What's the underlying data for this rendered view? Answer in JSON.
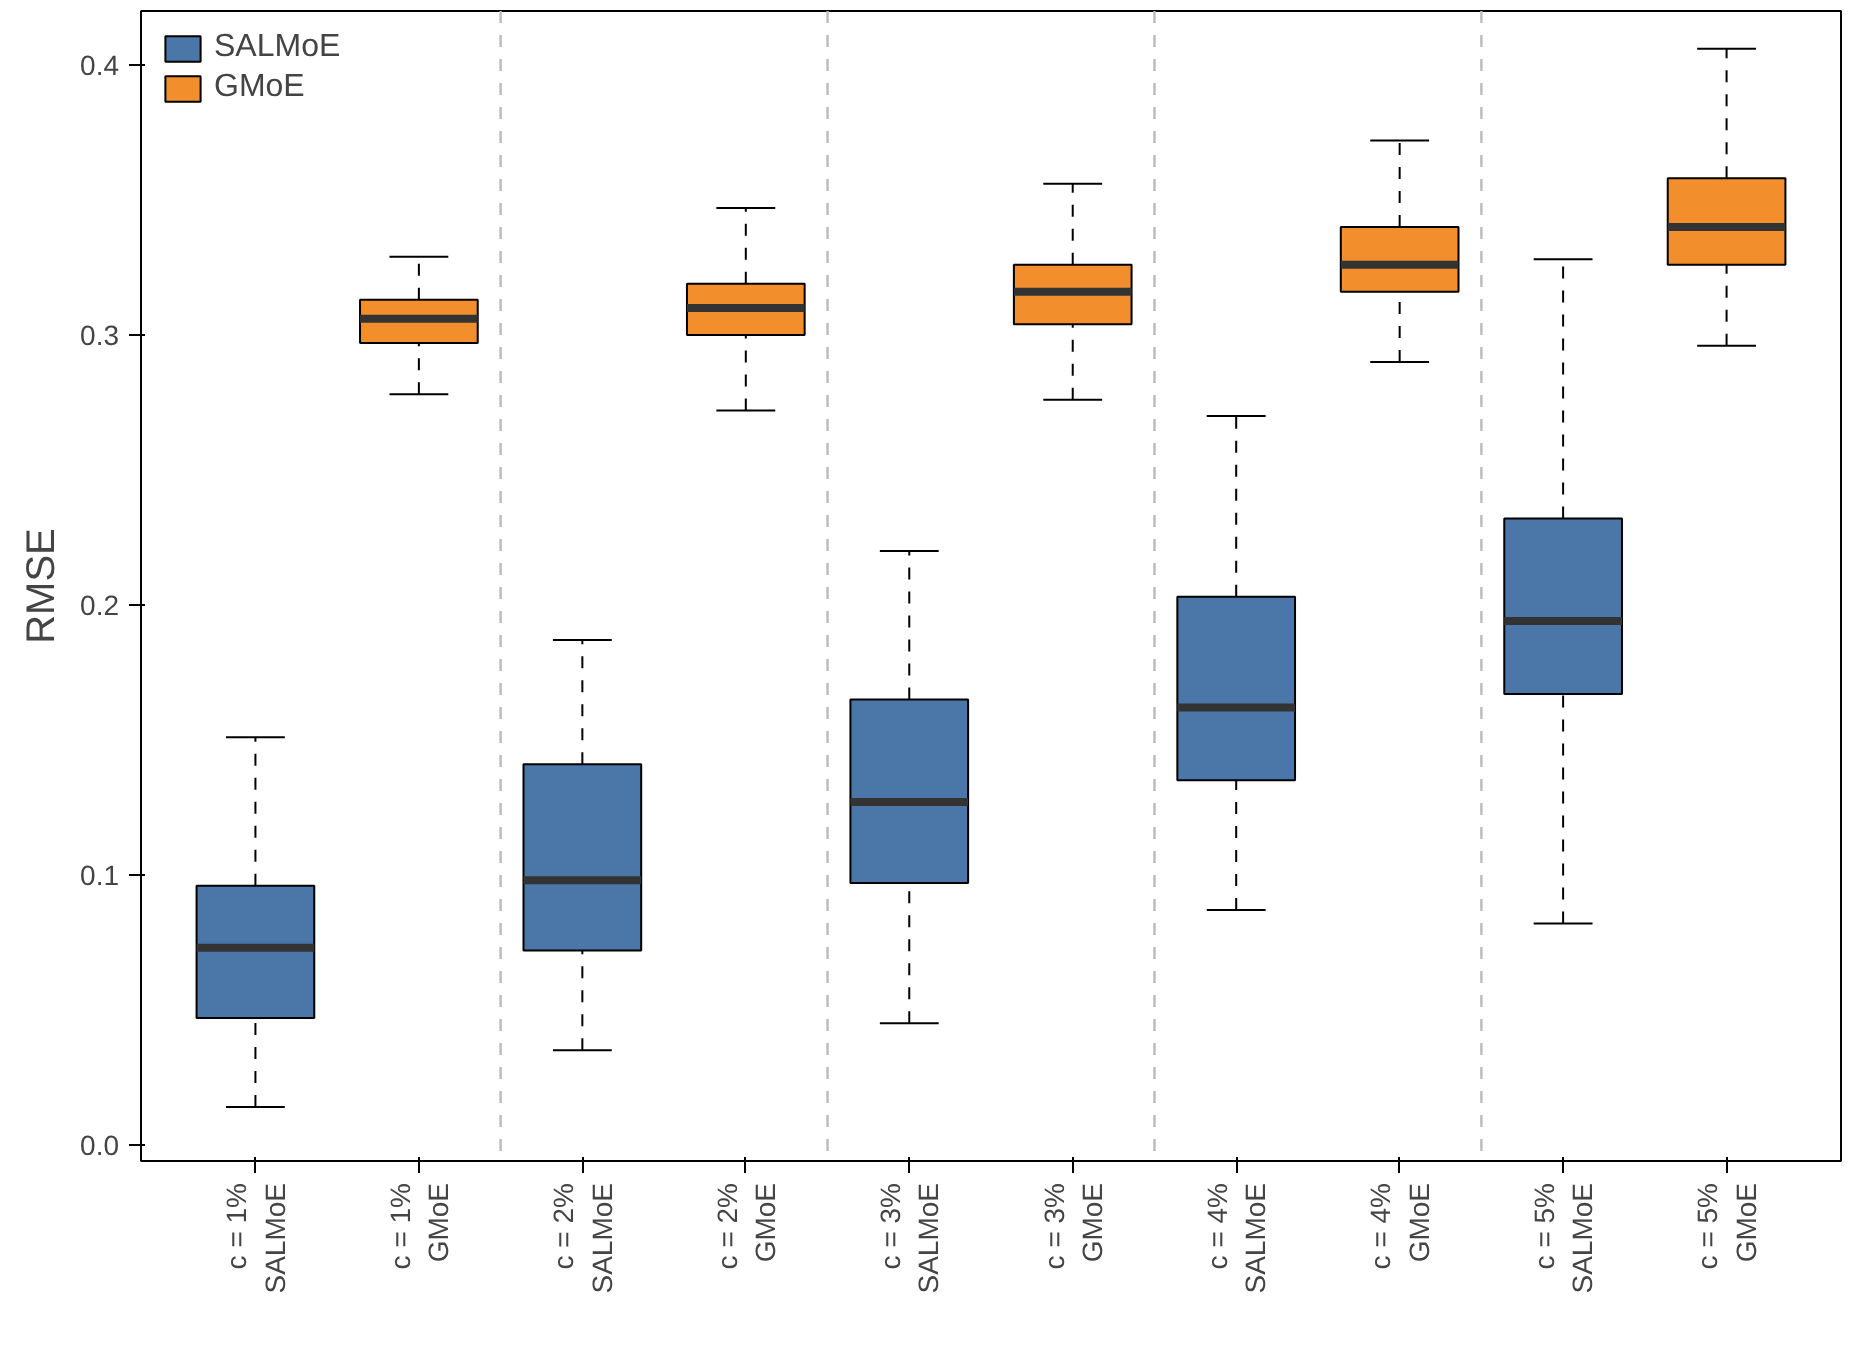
{
  "chart_data": {
    "type": "box",
    "ylabel": "RMSE",
    "categories": [
      "c = 1%\nSALMoE",
      "c = 1%\nGMoE",
      "c = 2%\nSALMoE",
      "c = 2%\nGMoE",
      "c = 3%\nSALMoE",
      "c = 3%\nGMoE",
      "c = 4%\nSALMoE",
      "c = 4%\nGMoE",
      "c = 5%\nSALMoE",
      "c = 5%\nGMoE"
    ],
    "series": [
      {
        "name": "SALMoE",
        "color": "#4a76a8",
        "boxes": [
          {
            "low": 0.014,
            "q1": 0.047,
            "median": 0.073,
            "q3": 0.096,
            "high": 0.151
          },
          null,
          {
            "low": 0.035,
            "q1": 0.072,
            "median": 0.098,
            "q3": 0.141,
            "high": 0.187
          },
          null,
          {
            "low": 0.045,
            "q1": 0.097,
            "median": 0.127,
            "q3": 0.165,
            "high": 0.22
          },
          null,
          {
            "low": 0.087,
            "q1": 0.135,
            "median": 0.162,
            "q3": 0.203,
            "high": 0.27
          },
          null,
          {
            "low": 0.082,
            "q1": 0.167,
            "median": 0.194,
            "q3": 0.232,
            "high": 0.328
          },
          null
        ]
      },
      {
        "name": "GMoE",
        "color": "#f28e2b",
        "boxes": [
          null,
          {
            "low": 0.278,
            "q1": 0.297,
            "median": 0.306,
            "q3": 0.313,
            "high": 0.329
          },
          null,
          {
            "low": 0.272,
            "q1": 0.3,
            "median": 0.31,
            "q3": 0.319,
            "high": 0.347
          },
          null,
          {
            "low": 0.276,
            "q1": 0.304,
            "median": 0.316,
            "q3": 0.326,
            "high": 0.356
          },
          null,
          {
            "low": 0.29,
            "q1": 0.316,
            "median": 0.326,
            "q3": 0.34,
            "high": 0.372
          },
          null,
          {
            "low": 0.296,
            "q1": 0.326,
            "median": 0.34,
            "q3": 0.358,
            "high": 0.406
          }
        ]
      }
    ],
    "ylim": [
      -0.006,
      0.42
    ],
    "yticks": [
      {
        "value": 0,
        "label": "0.0"
      },
      {
        "value": 0.1,
        "label": "0.1"
      },
      {
        "value": 0.2,
        "label": "0.2"
      },
      {
        "value": 0.3,
        "label": "0.3"
      },
      {
        "value": 0.4,
        "label": "0.4"
      }
    ],
    "grid": false,
    "legend": "top left"
  }
}
